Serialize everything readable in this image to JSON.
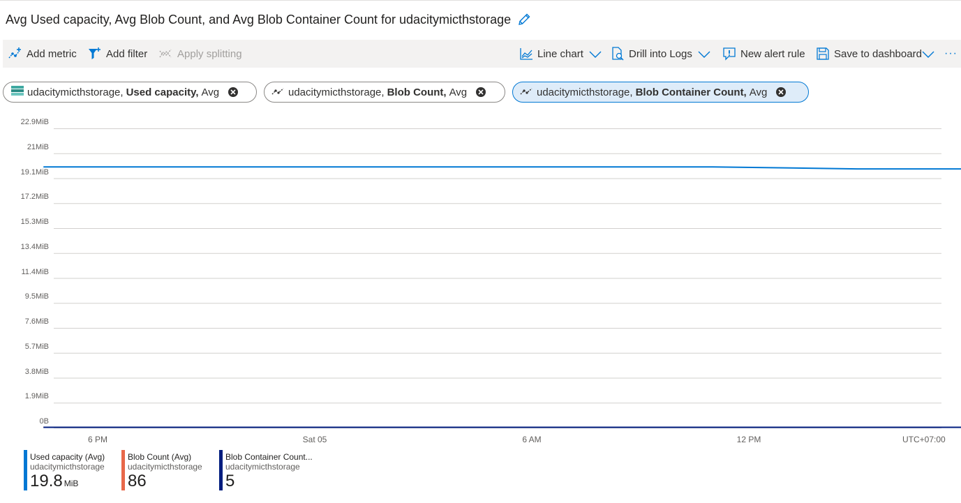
{
  "header": {
    "title": "Avg Used capacity, Avg Blob Count, and Avg Blob Container Count for udacitymicthstorage"
  },
  "toolbar": {
    "add_metric": "Add metric",
    "add_filter": "Add filter",
    "apply_splitting": "Apply splitting",
    "line_chart": "Line chart",
    "drill_into_logs": "Drill into Logs",
    "new_alert_rule": "New alert rule",
    "save_to_dashboard": "Save to dashboard",
    "more": "···"
  },
  "pills": [
    {
      "resource": "udacitymicthstorage,",
      "metric": "Used capacity,",
      "agg": "Avg",
      "icon": "storage-icon"
    },
    {
      "resource": "udacitymicthstorage,",
      "metric": "Blob Count,",
      "agg": "Avg",
      "icon": "metric-line-icon"
    },
    {
      "resource": "udacitymicthstorage,",
      "metric": "Blob Container Count,",
      "agg": "Avg",
      "icon": "metric-line-icon"
    }
  ],
  "colors": {
    "accent": "#0078d4",
    "used_capacity": "#0078d4",
    "blob_count": "#e8684a",
    "blob_container_count": "#001d7f"
  },
  "chart_data": {
    "type": "line",
    "y_tick_labels": [
      "22.9MiB",
      "21MiB",
      "19.1MiB",
      "17.2MiB",
      "15.3MiB",
      "13.4MiB",
      "11.4MiB",
      "9.5MiB",
      "7.6MiB",
      "5.7MiB",
      "3.8MiB",
      "1.9MiB",
      "0B"
    ],
    "ylim_mib": [
      0,
      22.9
    ],
    "x_tick_labels": [
      "6 PM",
      "Sat 05",
      "6 AM",
      "12 PM"
    ],
    "timezone": "UTC+07:00",
    "grid": true,
    "series": [
      {
        "name": "Used capacity (Avg)",
        "unit": "MiB",
        "x_hours_from_6pm": [
          -1.5,
          0,
          6,
          12,
          17,
          21,
          24,
          27,
          30,
          32.2
        ],
        "values": [
          19.95,
          19.95,
          19.95,
          19.95,
          19.95,
          19.8,
          19.8,
          19.8,
          19.8,
          19.8
        ],
        "projected_to": 32.5
      },
      {
        "name": "Blob Count (Avg)",
        "unit": "count",
        "x_hours_from_6pm": [
          -1.5,
          32.2
        ],
        "values": [
          86,
          86
        ]
      },
      {
        "name": "Blob Container Count (Avg)",
        "unit": "count",
        "x_hours_from_6pm": [
          -1.5,
          32.2
        ],
        "values": [
          5,
          5
        ],
        "projected_to": 32.5
      }
    ]
  },
  "legend": [
    {
      "title": "Used capacity (Avg)",
      "resource": "udacitymicthstorage",
      "value": "19.8",
      "unit": "MiB"
    },
    {
      "title": "Blob Count (Avg)",
      "resource": "udacitymicthstorage",
      "value": "86",
      "unit": ""
    },
    {
      "title": "Blob Container Count...",
      "resource": "udacitymicthstorage",
      "value": "5",
      "unit": ""
    }
  ]
}
